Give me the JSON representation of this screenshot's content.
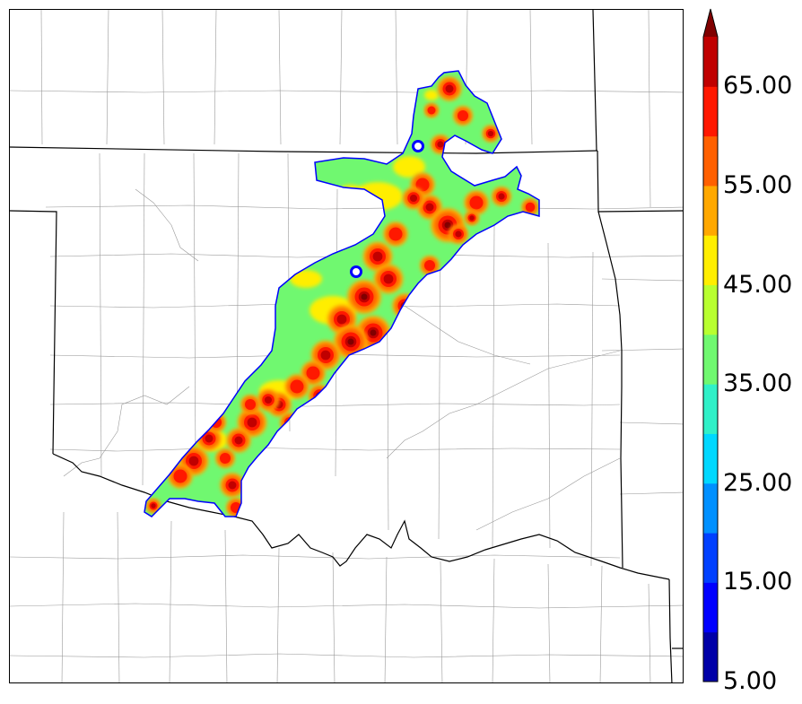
{
  "map": {
    "product": "reflectivity-swath",
    "region_description": "Oklahoma with surrounding states, county boundaries",
    "colors": {
      "state_border": "#000000",
      "county_border": "#999999",
      "river": "#999999",
      "background": "#ffffff"
    }
  },
  "colorbar": {
    "extend": "max",
    "levels": [
      5,
      10,
      15,
      20,
      25,
      30,
      35,
      40,
      45,
      50,
      55,
      60,
      65,
      70
    ],
    "colors": [
      "#0000a8",
      "#0000ff",
      "#0040ff",
      "#0090ff",
      "#00d8ff",
      "#30f0c8",
      "#70f870",
      "#b8ff30",
      "#ffee00",
      "#ffa800",
      "#ff6000",
      "#ff1800",
      "#c00000",
      "#800000"
    ],
    "overflow_color": "#800000",
    "tick_labels": [
      "5.00",
      "15.00",
      "25.00",
      "35.00",
      "45.00",
      "55.00",
      "65.00"
    ]
  }
}
